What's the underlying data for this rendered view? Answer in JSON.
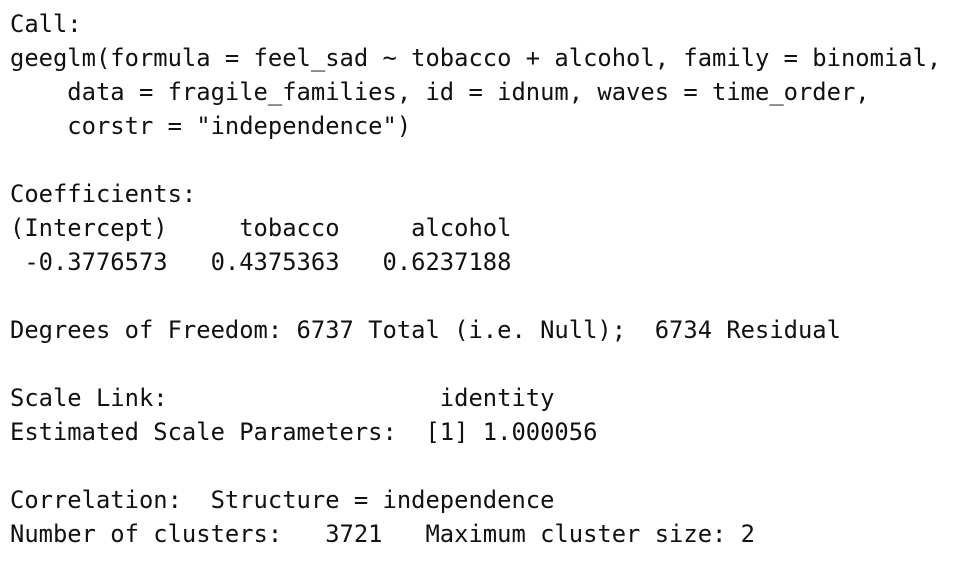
{
  "blocks": [
    {
      "lines": [
        "Call:",
        "geeglm(formula = feel_sad ~ tobacco + alcohol, family = binomial,",
        "    data = fragile_families, id = idnum, waves = time_order,",
        "    corstr = \"independence\")"
      ]
    },
    {
      "lines": [
        "Coefficients:",
        "(Intercept)     tobacco     alcohol",
        " -0.3776573   0.4375363   0.6237188"
      ]
    },
    {
      "lines": [
        "Degrees of Freedom: 6737 Total (i.e. Null);  6734 Residual"
      ]
    },
    {
      "lines": [
        "Scale Link:                   identity",
        "Estimated Scale Parameters:  [1] 1.000056"
      ]
    },
    {
      "lines": [
        "Correlation:  Structure = independence",
        "Number of clusters:   3721   Maximum cluster size: 2"
      ]
    }
  ]
}
